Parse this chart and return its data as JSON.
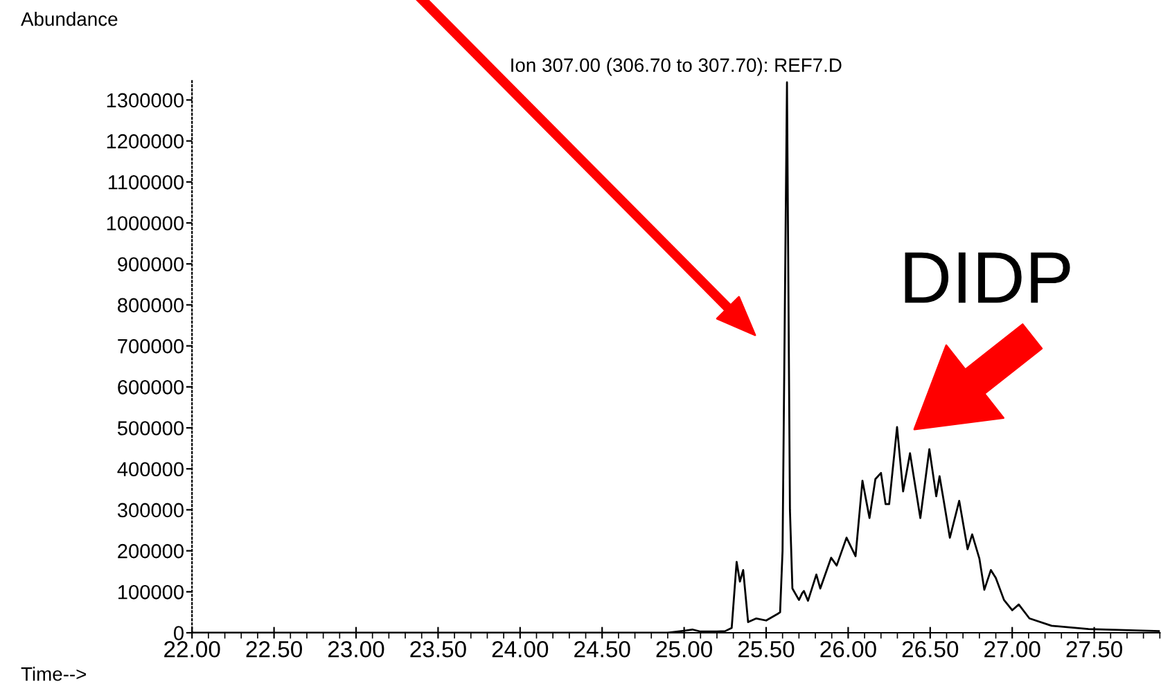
{
  "chart_data": {
    "type": "line",
    "title": "Ion 307.00 (306.70 to 307.70): REF7.D",
    "xlabel": "Time-->",
    "ylabel": "Abundance",
    "annotations": [
      "DIDP"
    ],
    "xlim": [
      22.0,
      27.9
    ],
    "xticks": [
      {
        "value": 22.0,
        "label": "22.00"
      },
      {
        "value": 22.5,
        "label": "22.50"
      },
      {
        "value": 23.0,
        "label": "23.00"
      },
      {
        "value": 23.5,
        "label": "23.50"
      },
      {
        "value": 24.0,
        "label": "24.00"
      },
      {
        "value": 24.5,
        "label": "24.50"
      },
      {
        "value": 25.0,
        "label": "25.00"
      },
      {
        "value": 25.5,
        "label": "25.50"
      },
      {
        "value": 26.0,
        "label": "26.00"
      },
      {
        "value": 26.5,
        "label": "26.50"
      },
      {
        "value": 27.0,
        "label": "27.00"
      },
      {
        "value": 27.5,
        "label": "27.50"
      }
    ],
    "ylim": [
      0,
      1350000
    ],
    "yticks": [
      0,
      100000,
      200000,
      300000,
      400000,
      500000,
      600000,
      700000,
      800000,
      900000,
      1000000,
      1100000,
      1200000,
      1300000
    ],
    "grid": false,
    "legend": false,
    "marker": "none",
    "line_style": "solid",
    "series": [
      {
        "color": "#000000",
        "x": [
          22.0,
          24.9,
          25.0,
          25.05,
          25.1,
          25.2,
          25.25,
          25.29,
          25.32,
          25.34,
          25.36,
          25.39,
          25.44,
          25.5,
          25.57,
          25.585,
          25.6,
          25.627,
          25.645,
          25.66,
          25.7,
          25.72,
          25.73,
          25.755,
          25.806,
          25.83,
          25.896,
          25.93,
          25.99,
          26.045,
          26.087,
          26.13,
          26.166,
          26.2,
          26.228,
          26.25,
          26.298,
          26.335,
          26.377,
          26.44,
          26.495,
          26.537,
          26.557,
          26.58,
          26.62,
          26.677,
          26.728,
          26.756,
          26.8,
          26.83,
          26.87,
          26.9,
          26.95,
          27.0,
          27.04,
          27.105,
          27.24,
          27.465,
          27.9
        ],
        "values": [
          0,
          0,
          5000,
          8000,
          3000,
          3000,
          4000,
          12000,
          173000,
          125000,
          153000,
          26000,
          35000,
          30000,
          46000,
          50000,
          200000,
          1343000,
          300000,
          108000,
          80000,
          97000,
          102000,
          78000,
          142000,
          108000,
          183000,
          164000,
          232000,
          187000,
          371000,
          280000,
          375000,
          390000,
          314000,
          314000,
          502000,
          345000,
          438000,
          280000,
          448000,
          333000,
          382000,
          328000,
          232000,
          322000,
          204000,
          240000,
          181000,
          105000,
          153000,
          134000,
          80000,
          55000,
          69000,
          35000,
          17000,
          9000,
          4000
        ]
      }
    ]
  }
}
